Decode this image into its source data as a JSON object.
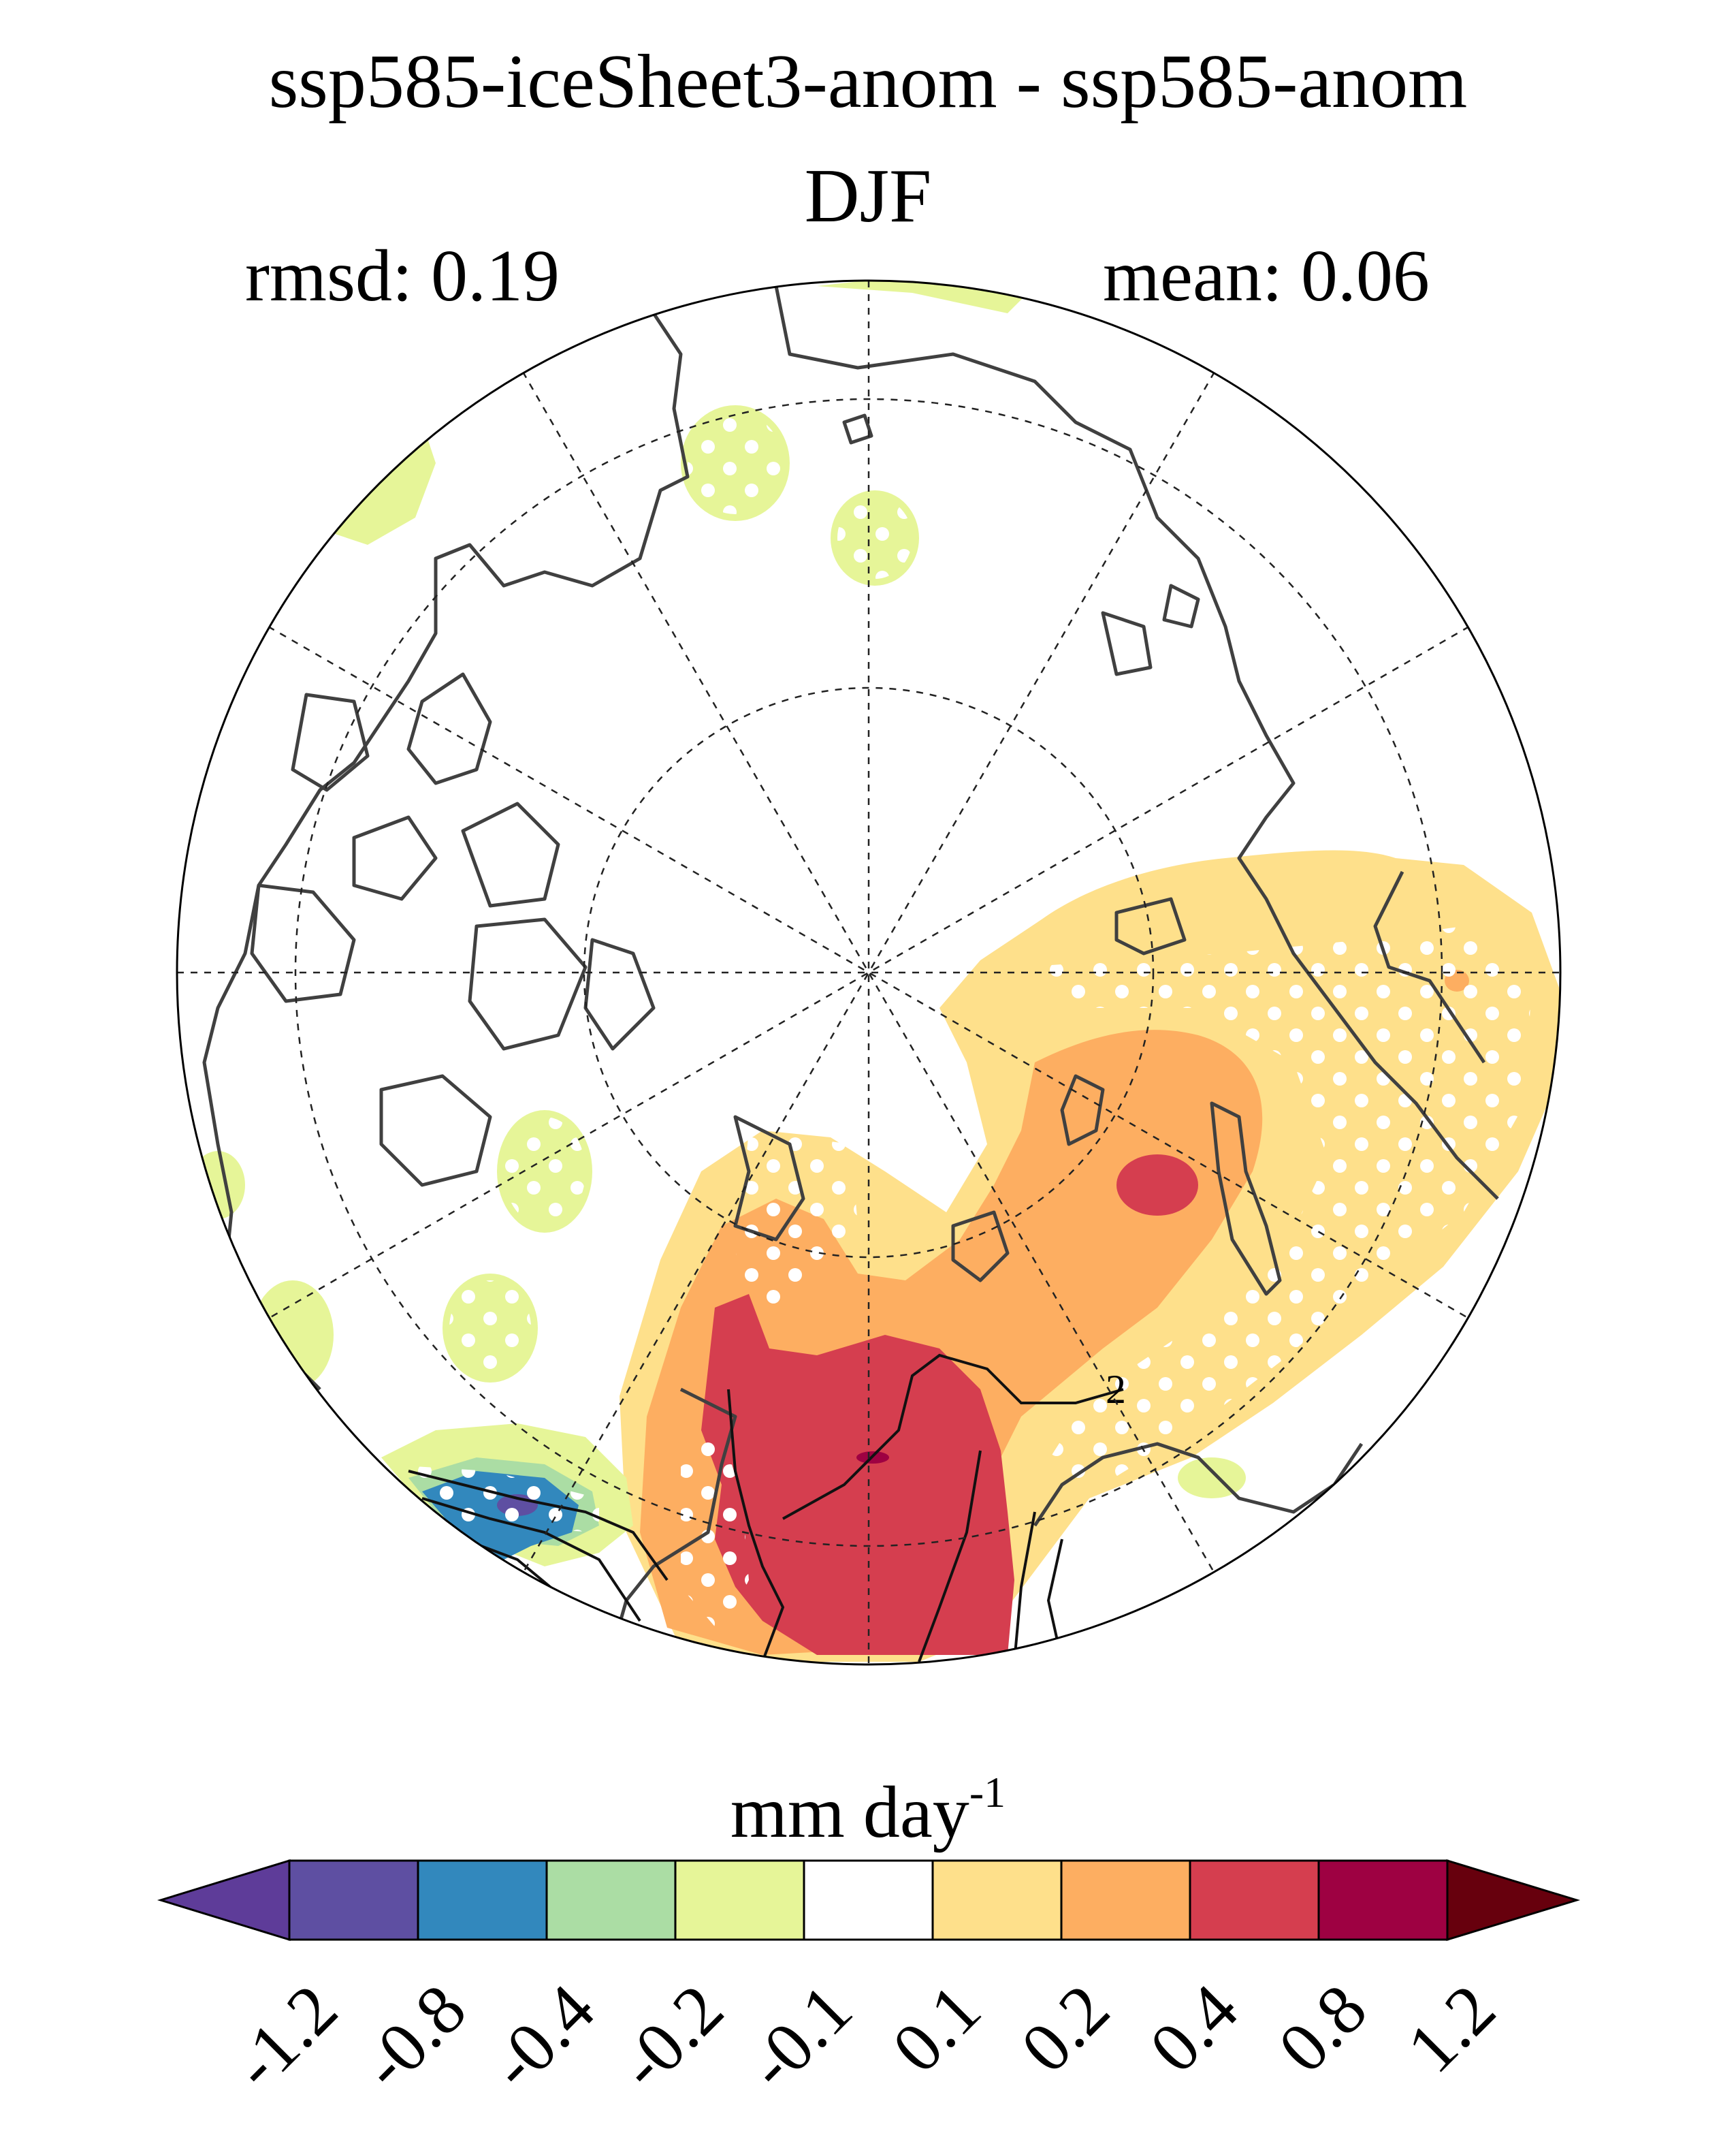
{
  "title": "ssp585-iceSheet3-anom - ssp585-anom",
  "season": "DJF",
  "stats": {
    "rmsd": "rmsd: 0.19",
    "mean": "mean: 0.06"
  },
  "map": {
    "projection": "north polar stereographic",
    "contour_label": "2",
    "stippling": "white dots"
  },
  "colorbar": {
    "units": "mm day",
    "units_exponent": "-1",
    "levels": [
      "-1.2",
      "-0.8",
      "-0.4",
      "-0.2",
      "-0.1",
      "0.1",
      "0.2",
      "0.4",
      "0.8",
      "1.2"
    ],
    "colors": [
      "#5e3c99",
      "#5e4fa2",
      "#3288bd",
      "#abdda4",
      "#e6f598",
      "#ffffff",
      "#fee08b",
      "#fdae61",
      "#d53e4f",
      "#9e0142",
      "#67000d"
    ]
  }
}
